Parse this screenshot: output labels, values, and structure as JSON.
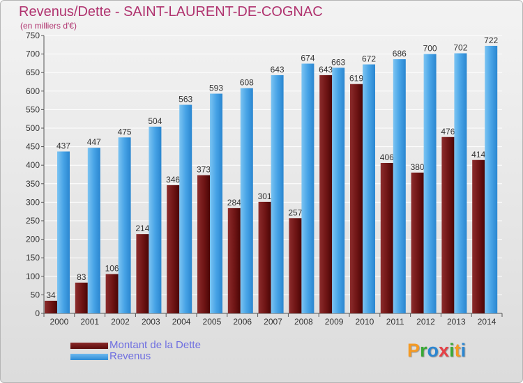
{
  "title": "Revenus/Dette - SAINT-LAURENT-DE-COGNAC",
  "subtitle": "(en milliers d'€)",
  "chart_data": {
    "type": "bar",
    "title": "Revenus/Dette - SAINT-LAURENT-DE-COGNAC",
    "ylabel": "(en milliers d'€)",
    "xlabel": "",
    "ylim": [
      0,
      750
    ],
    "yticks": [
      0,
      50,
      100,
      150,
      200,
      250,
      300,
      350,
      400,
      450,
      500,
      550,
      600,
      650,
      700,
      750
    ],
    "categories": [
      "2000",
      "2001",
      "2002",
      "2003",
      "2004",
      "2005",
      "2006",
      "2007",
      "2008",
      "2009",
      "2010",
      "2011",
      "2012",
      "2013",
      "2014"
    ],
    "series": [
      {
        "name": "Montant de la Dette",
        "color": "#6e1414",
        "values": [
          34,
          83,
          106,
          214,
          346,
          373,
          284,
          301,
          257,
          643,
          619,
          406,
          380,
          476,
          414
        ]
      },
      {
        "name": "Revenus",
        "color": "#3f9fe3",
        "values": [
          437,
          447,
          475,
          504,
          563,
          593,
          608,
          643,
          674,
          663,
          672,
          686,
          700,
          702,
          722
        ]
      }
    ],
    "grid": true,
    "legend": "bottom-left"
  },
  "legend": {
    "items": [
      {
        "label": "Montant de la Dette",
        "color": "#6e1414"
      },
      {
        "label": "Revenus",
        "color": "#3f9fe3"
      }
    ]
  },
  "logo": {
    "letters": [
      {
        "ch": "P",
        "color": "#f59a23"
      },
      {
        "ch": "r",
        "color": "#39a935"
      },
      {
        "ch": "o",
        "color": "#2b86d1"
      },
      {
        "ch": "x",
        "color": "#e64046"
      },
      {
        "ch": "i",
        "color": "#39a935"
      },
      {
        "ch": "t",
        "color": "#f59a23"
      },
      {
        "ch": "i",
        "color": "#2b86d1"
      }
    ]
  }
}
